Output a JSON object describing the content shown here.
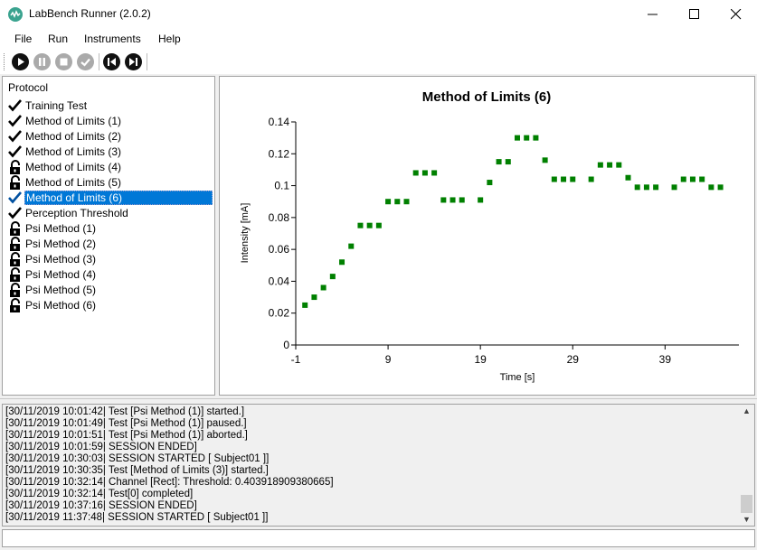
{
  "window": {
    "title": "LabBench Runner (2.0.2)"
  },
  "menu": {
    "items": [
      "File",
      "Run",
      "Instruments",
      "Help"
    ]
  },
  "toolbar": {
    "buttons": [
      {
        "name": "play-button",
        "icon": "play-icon",
        "enabled": true
      },
      {
        "name": "pause-button",
        "icon": "pause-icon",
        "enabled": false
      },
      {
        "name": "stop-button",
        "icon": "stop-icon",
        "enabled": false
      },
      {
        "name": "complete-button",
        "icon": "check-icon",
        "enabled": false
      },
      {
        "name": "previous-button",
        "icon": "skip-previous-icon",
        "enabled": true
      },
      {
        "name": "next-button",
        "icon": "skip-next-icon",
        "enabled": true
      }
    ]
  },
  "protocol": {
    "header": "Protocol",
    "items": [
      {
        "label": "Training Test",
        "status": "completed"
      },
      {
        "label": "Method of Limits (1)",
        "status": "completed"
      },
      {
        "label": "Method of Limits (2)",
        "status": "completed"
      },
      {
        "label": "Method of Limits (3)",
        "status": "completed"
      },
      {
        "label": "Method of Limits (4)",
        "status": "locked"
      },
      {
        "label": "Method of Limits (5)",
        "status": "locked"
      },
      {
        "label": "Method of Limits (6)",
        "status": "completed",
        "selected": true
      },
      {
        "label": "Perception Threshold",
        "status": "completed"
      },
      {
        "label": "Psi Method (1)",
        "status": "locked"
      },
      {
        "label": "Psi Method (2)",
        "status": "locked"
      },
      {
        "label": "Psi Method (3)",
        "status": "locked"
      },
      {
        "label": "Psi Method (4)",
        "status": "locked"
      },
      {
        "label": "Psi Method (5)",
        "status": "locked"
      },
      {
        "label": "Psi Method (6)",
        "status": "locked"
      }
    ]
  },
  "colors": {
    "accent": "#0078d7",
    "series": "#008000"
  },
  "chart_data": {
    "type": "scatter",
    "title": "Method of Limits (6)",
    "xlabel": "Time [s]",
    "ylabel": "Intensity [mA]",
    "xlim": [
      -1,
      47
    ],
    "ylim": [
      0,
      0.14
    ],
    "xticks": [
      "-1",
      "9",
      "19",
      "29",
      "39"
    ],
    "yticks": [
      "0",
      "0.02",
      "0.04",
      "0.06",
      "0.08",
      "0.1",
      "0.12",
      "0.14"
    ],
    "x": [
      0,
      1,
      2,
      3,
      4,
      5,
      6,
      7,
      8,
      9,
      10,
      11,
      12,
      13,
      14,
      15,
      16,
      17,
      19,
      20,
      21,
      22,
      23,
      24,
      25,
      26,
      27,
      28,
      29,
      31,
      32,
      33,
      34,
      35,
      36,
      37,
      38,
      40,
      41,
      42,
      43,
      44,
      45
    ],
    "y": [
      0.025,
      0.03,
      0.036,
      0.043,
      0.052,
      0.062,
      0.075,
      0.075,
      0.075,
      0.09,
      0.09,
      0.09,
      0.108,
      0.108,
      0.108,
      0.091,
      0.091,
      0.091,
      0.091,
      0.102,
      0.115,
      0.115,
      0.13,
      0.13,
      0.13,
      0.116,
      0.104,
      0.104,
      0.104,
      0.104,
      0.113,
      0.113,
      0.113,
      0.105,
      0.099,
      0.099,
      0.099,
      0.099,
      0.104,
      0.104,
      0.104,
      0.099,
      0.099
    ],
    "series": [
      {
        "marker": "square",
        "color": "#008000"
      }
    ],
    "grid": false
  },
  "log": {
    "lines": [
      "[30/11/2019 10:01:42| Test [Psi Method (1)] started.]",
      "[30/11/2019 10:01:49| Test [Psi Method (1)] paused.]",
      "[30/11/2019 10:01:51| Test [Psi Method (1)] aborted.]",
      "[30/11/2019 10:01:59| SESSION ENDED]",
      "[30/11/2019 10:30:03| SESSION STARTED [ Subject01 ]]",
      "[30/11/2019 10:30:35| Test [Method of Limits (3)] started.]",
      "[30/11/2019 10:32:14| Channel [Rect]: Threshold: 0.403918909380665]",
      "[30/11/2019 10:32:14| Test[0] completed]",
      "[30/11/2019 10:37:16| SESSION ENDED]",
      "[30/11/2019 11:37:48| SESSION STARTED [ Subject01 ]]"
    ]
  },
  "command": {
    "value": ""
  }
}
